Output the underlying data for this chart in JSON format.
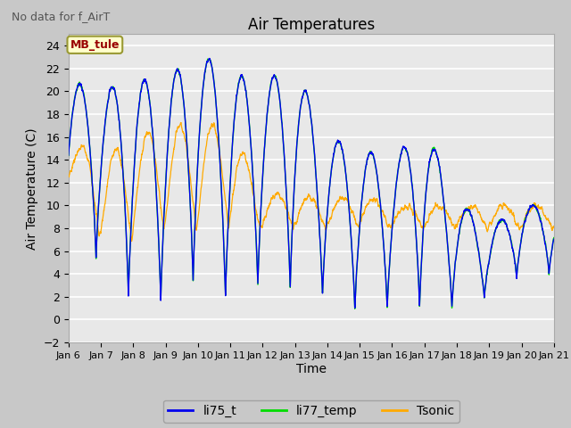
{
  "title": "Air Temperatures",
  "suptitle": "No data for f_AirT",
  "xlabel": "Time",
  "ylabel": "Air Temperature (C)",
  "ylim": [
    -2,
    25
  ],
  "xlim_days": [
    6,
    21
  ],
  "annotation": "MB_tule",
  "series": {
    "li75_t": {
      "color": "#0000ee",
      "label": "li75_t"
    },
    "li77_temp": {
      "color": "#00dd00",
      "label": "li77_temp"
    },
    "Tsonic": {
      "color": "#ffaa00",
      "label": "Tsonic"
    }
  },
  "tick_labels": [
    "Jan 6",
    "Jan 7",
    "Jan 8",
    "Jan 9",
    "Jan 10",
    "Jan 11",
    "Jan 12",
    "Jan 13",
    "Jan 14",
    "Jan 15",
    "Jan 16",
    "Jan 17",
    "Jan 18",
    "Jan 19",
    "Jan 20",
    "Jan 21"
  ],
  "fig_bg": "#c8c8c8",
  "plot_bg": "#e8e8e8",
  "grid_color": "#ffffff",
  "num_points": 3600
}
